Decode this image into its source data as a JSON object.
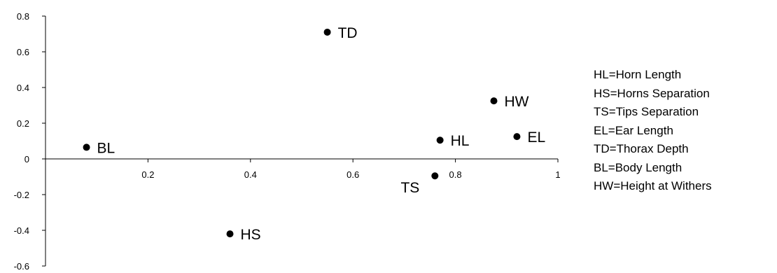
{
  "chart_data": {
    "type": "scatter",
    "xlim": [
      0,
      1
    ],
    "ylim": [
      -0.6,
      0.8
    ],
    "x_ticks": [
      0.2,
      0.4,
      0.6,
      0.8,
      1
    ],
    "x_tick_labels": [
      "0.2",
      "0.4",
      "0.6",
      "0.8",
      "1"
    ],
    "y_ticks": [
      0.8,
      0.6,
      0.4,
      0.2,
      0,
      -0.2,
      -0.4,
      -0.6
    ],
    "y_tick_labels": [
      "0.8",
      "0.6",
      "0.4",
      "0.2",
      "0",
      "-0.2",
      "-0.4",
      "-0.6"
    ],
    "grid": false,
    "legend_position": "right",
    "marker_color": "#000000",
    "points": [
      {
        "label": "TD",
        "x": 0.55,
        "y": 0.71,
        "label_side": "right"
      },
      {
        "label": "HW",
        "x": 0.875,
        "y": 0.325,
        "label_side": "right"
      },
      {
        "label": "EL",
        "x": 0.92,
        "y": 0.125,
        "label_side": "right"
      },
      {
        "label": "HL",
        "x": 0.77,
        "y": 0.105,
        "label_side": "right"
      },
      {
        "label": "BL",
        "x": 0.08,
        "y": 0.065,
        "label_side": "right"
      },
      {
        "label": "TS",
        "x": 0.76,
        "y": -0.095,
        "label_side": "below-left"
      },
      {
        "label": "HS",
        "x": 0.36,
        "y": -0.42,
        "label_side": "right"
      }
    ]
  },
  "legend": {
    "items": [
      "HL=Horn Length",
      "HS=Horns Separation",
      "TS=Tips Separation",
      "EL=Ear Length",
      "TD=Thorax Depth",
      "BL=Body Length",
      "HW=Height at Withers"
    ]
  }
}
